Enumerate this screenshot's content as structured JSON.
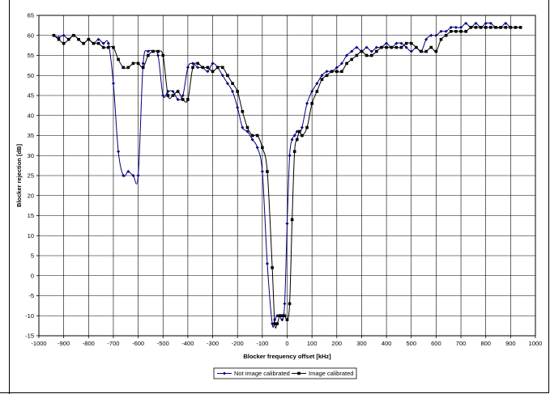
{
  "chart_data": {
    "type": "line",
    "title": "",
    "xlabel": "Blocker frequency offset [kHz]",
    "ylabel": "Blocker rejection [dB]",
    "xlim": [
      -1000,
      1000
    ],
    "ylim": [
      -15,
      65
    ],
    "xticks": [
      -1000,
      -900,
      -800,
      -700,
      -600,
      -500,
      -400,
      -300,
      -200,
      -100,
      0,
      100,
      200,
      300,
      400,
      500,
      600,
      700,
      800,
      900,
      1000
    ],
    "yticks": [
      -15,
      -10,
      -5,
      0,
      5,
      10,
      15,
      20,
      25,
      30,
      35,
      40,
      45,
      50,
      55,
      60,
      65
    ],
    "grid": true,
    "legend_position": "bottom-center",
    "x": [
      -940,
      -920,
      -900,
      -880,
      -860,
      -840,
      -820,
      -800,
      -780,
      -760,
      -740,
      -720,
      -700,
      -680,
      -660,
      -640,
      -620,
      -600,
      -580,
      -560,
      -540,
      -520,
      -500,
      -480,
      -460,
      -440,
      -420,
      -400,
      -380,
      -360,
      -340,
      -320,
      -300,
      -280,
      -260,
      -240,
      -220,
      -200,
      -180,
      -160,
      -140,
      -120,
      -100,
      -80,
      -60,
      -50,
      -40,
      -30,
      -20,
      -10,
      0,
      10,
      20,
      30,
      40,
      50,
      60,
      80,
      100,
      120,
      140,
      160,
      180,
      200,
      220,
      240,
      260,
      280,
      300,
      320,
      340,
      360,
      380,
      400,
      420,
      440,
      460,
      480,
      500,
      520,
      540,
      560,
      580,
      600,
      620,
      640,
      660,
      680,
      700,
      720,
      740,
      760,
      780,
      800,
      820,
      840,
      860,
      880,
      900,
      920,
      940
    ],
    "series": [
      {
        "name": "Not image calibrated",
        "color": "#000080",
        "marker": "diamond",
        "values": [
          60,
          59.5,
          60,
          59,
          60,
          59,
          58,
          59,
          58,
          59,
          58,
          58,
          48,
          31,
          25,
          26,
          25,
          25,
          53,
          56,
          56,
          55,
          45,
          46,
          46,
          44,
          45,
          52,
          53,
          52,
          52,
          51,
          53,
          52,
          50,
          48,
          46,
          42,
          37,
          36,
          34,
          32,
          26,
          3,
          -12,
          -11,
          -10,
          -10,
          -11,
          -7,
          13,
          30,
          34,
          35,
          36,
          36,
          37,
          43,
          46,
          48,
          50,
          51,
          51,
          52,
          53,
          55,
          56,
          57,
          56,
          57,
          56,
          57,
          57,
          58,
          57,
          58,
          58,
          57,
          56,
          57,
          56,
          59,
          60,
          60,
          61,
          61,
          62,
          62,
          62,
          63,
          62,
          63,
          62,
          63,
          63,
          62,
          62,
          63,
          62,
          62,
          62
        ],
        "note": ""
      },
      {
        "name": "Image calibrated",
        "color": "#000000",
        "marker": "square",
        "values": [
          60,
          59,
          58,
          59,
          60,
          59,
          58,
          59,
          58,
          58,
          57,
          57,
          57,
          54,
          52,
          52,
          53,
          53,
          52,
          55,
          56,
          56,
          55,
          45,
          45,
          46,
          44,
          44,
          52,
          53,
          52,
          52,
          51,
          52,
          52,
          50,
          48,
          46,
          41,
          37,
          35,
          35,
          32,
          26,
          2,
          -12,
          -12,
          -10,
          -10,
          -10,
          -11,
          -7,
          14,
          31,
          34,
          36,
          35,
          37,
          43,
          46,
          49,
          50,
          51,
          51,
          51,
          53,
          54,
          55,
          56,
          55,
          55,
          56,
          57,
          57,
          57,
          57,
          57,
          58,
          58,
          57,
          56,
          56,
          57,
          56,
          59,
          60,
          61,
          61,
          61,
          61,
          62,
          62,
          62,
          62,
          62,
          62,
          62,
          62,
          62,
          62,
          62
        ]
      }
    ]
  }
}
